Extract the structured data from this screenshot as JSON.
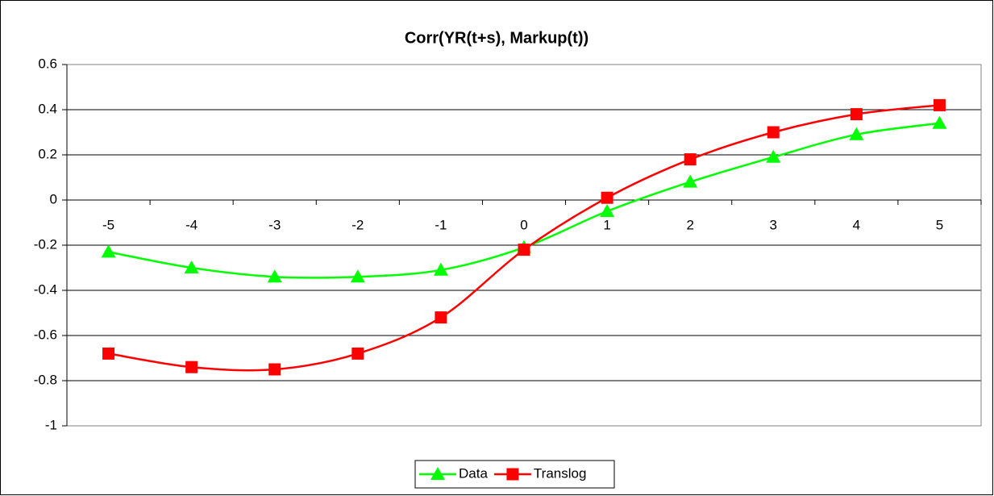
{
  "chart_data": {
    "type": "line",
    "title": "Corr(YR(t+s), Markup(t))",
    "categories": [
      "-5",
      "-4",
      "-3",
      "-2",
      "-1",
      "0",
      "1",
      "2",
      "3",
      "4",
      "5"
    ],
    "series": [
      {
        "name": "Data",
        "color": "#00ff00",
        "marker": "triangle",
        "values": [
          -0.23,
          -0.3,
          -0.34,
          -0.34,
          -0.31,
          -0.21,
          -0.05,
          0.08,
          0.19,
          0.29,
          0.34
        ]
      },
      {
        "name": "Translog",
        "color": "#ff0000",
        "marker": "square",
        "values": [
          -0.68,
          -0.74,
          -0.75,
          -0.68,
          -0.52,
          -0.22,
          0.01,
          0.18,
          0.3,
          0.38,
          0.42
        ]
      }
    ],
    "ylim": [
      -1,
      0.6
    ],
    "yticks": [
      -1,
      -0.8,
      -0.6,
      -0.4,
      -0.2,
      0,
      0.2,
      0.4,
      0.6
    ],
    "grid": true,
    "legend": "bottom"
  }
}
